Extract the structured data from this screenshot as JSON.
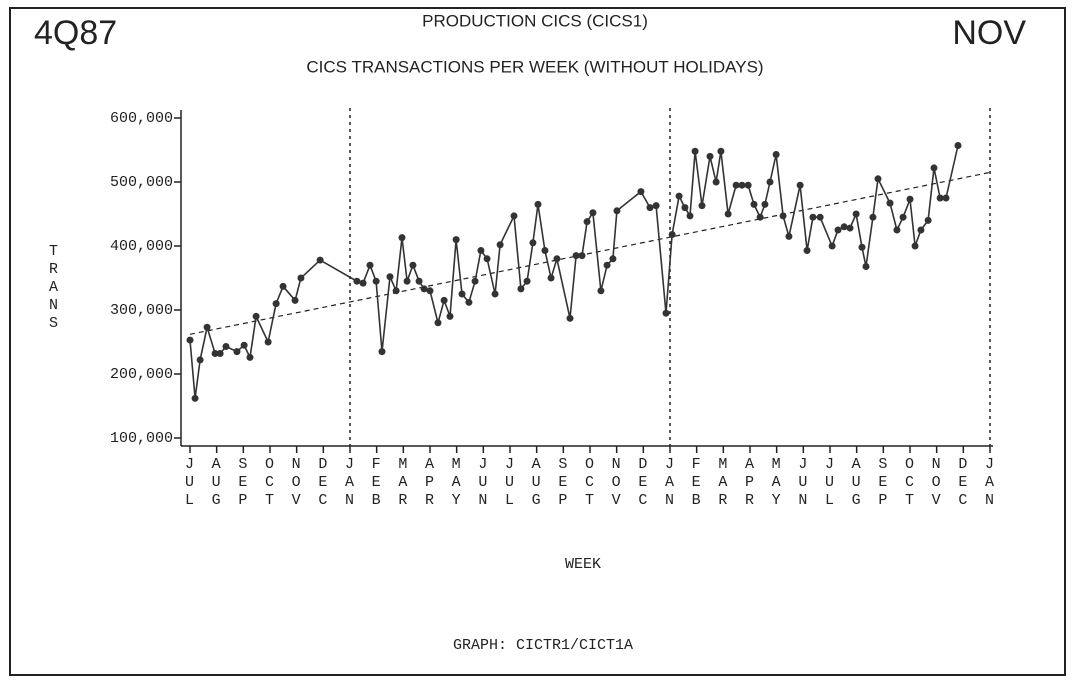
{
  "chart_data": {
    "type": "line",
    "corner_left": "4Q87",
    "corner_right": "NOV",
    "title": "PRODUCTION CICS (CICS1)",
    "subtitle": "CICS TRANSACTIONS PER WEEK (WITHOUT HOLIDAYS)",
    "ylabel": "TRANS",
    "xlabel": "WEEK",
    "footer": "GRAPH: CICTR1/CICT1A",
    "ylim": [
      100000,
      600000
    ],
    "yticks": [
      {
        "value": 100000,
        "label": "100,000"
      },
      {
        "value": 200000,
        "label": "200,000"
      },
      {
        "value": 300000,
        "label": "300,000"
      },
      {
        "value": 400000,
        "label": "400,000"
      },
      {
        "value": 500000,
        "label": "500,000"
      },
      {
        "value": 600000,
        "label": "600,000"
      }
    ],
    "xlim": [
      0,
      30
    ],
    "xticks": [
      {
        "value": 0,
        "label": "JUL"
      },
      {
        "value": 1,
        "label": "AUG"
      },
      {
        "value": 2,
        "label": "SEP"
      },
      {
        "value": 3,
        "label": "OCT"
      },
      {
        "value": 4,
        "label": "NOV"
      },
      {
        "value": 5,
        "label": "DEC"
      },
      {
        "value": 6,
        "label": "JAN"
      },
      {
        "value": 7,
        "label": "FEB"
      },
      {
        "value": 8,
        "label": "MAR"
      },
      {
        "value": 9,
        "label": "APR"
      },
      {
        "value": 10,
        "label": "MAY"
      },
      {
        "value": 11,
        "label": "JUN"
      },
      {
        "value": 12,
        "label": "JUL"
      },
      {
        "value": 13,
        "label": "AUG"
      },
      {
        "value": 14,
        "label": "SEP"
      },
      {
        "value": 15,
        "label": "OCT"
      },
      {
        "value": 16,
        "label": "NOV"
      },
      {
        "value": 17,
        "label": "DEC"
      },
      {
        "value": 18,
        "label": "JAN"
      },
      {
        "value": 19,
        "label": "FEB"
      },
      {
        "value": 20,
        "label": "MAR"
      },
      {
        "value": 21,
        "label": "APR"
      },
      {
        "value": 22,
        "label": "MAY"
      },
      {
        "value": 23,
        "label": "JUN"
      },
      {
        "value": 24,
        "label": "JUL"
      },
      {
        "value": 25,
        "label": "AUG"
      },
      {
        "value": 26,
        "label": "SEP"
      },
      {
        "value": 27,
        "label": "OCT"
      },
      {
        "value": 28,
        "label": "NOV"
      },
      {
        "value": 29,
        "label": "DEC"
      },
      {
        "value": 30,
        "label": "JAN"
      }
    ],
    "year_dividers": [
      6,
      18,
      30
    ],
    "color": "#333333",
    "x": [
      0,
      0.19,
      0.38,
      0.64,
      0.94,
      1.13,
      1.35,
      1.76,
      2.03,
      2.25,
      2.48,
      2.93,
      3.23,
      3.49,
      3.94,
      4.16,
      4.88,
      6.26,
      6.49,
      6.75,
      6.98,
      7.2,
      7.5,
      7.73,
      7.95,
      8.14,
      8.36,
      8.59,
      8.78,
      9.0,
      9.3,
      9.53,
      9.75,
      9.98,
      10.2,
      10.46,
      10.69,
      10.91,
      11.14,
      11.44,
      11.63,
      12.15,
      12.41,
      12.64,
      12.86,
      13.05,
      13.31,
      13.54,
      13.76,
      14.25,
      14.48,
      14.7,
      14.89,
      15.11,
      15.41,
      15.64,
      15.86,
      16.01,
      16.91,
      17.25,
      17.48,
      17.85,
      18.08,
      18.34,
      18.56,
      18.75,
      18.94,
      19.2,
      19.5,
      19.73,
      19.91,
      20.18,
      20.48,
      20.7,
      20.93,
      21.15,
      21.38,
      21.56,
      21.75,
      21.98,
      22.24,
      22.46,
      22.88,
      23.14,
      23.36,
      23.63,
      24.08,
      24.3,
      24.53,
      24.75,
      24.98,
      25.2,
      25.35,
      25.61,
      25.8,
      26.25,
      26.51,
      26.74,
      27.0,
      27.19,
      27.41,
      27.68,
      27.9,
      28.13,
      28.35,
      28.8
    ],
    "values": [
      253000,
      162000,
      222000,
      273000,
      232000,
      232000,
      243000,
      235000,
      245000,
      226000,
      290000,
      250000,
      310000,
      337000,
      315000,
      350000,
      378000,
      345000,
      342000,
      370000,
      345000,
      235000,
      352000,
      330000,
      413000,
      345000,
      370000,
      345000,
      333000,
      330000,
      280000,
      315000,
      290000,
      410000,
      325000,
      312000,
      345000,
      393000,
      380000,
      325000,
      402000,
      447000,
      333000,
      345000,
      405000,
      465000,
      393000,
      350000,
      380000,
      287000,
      385000,
      385000,
      438000,
      452000,
      330000,
      370000,
      380000,
      455000,
      485000,
      460000,
      463000,
      295000,
      418000,
      478000,
      460000,
      447000,
      548000,
      463000,
      540000,
      500000,
      548000,
      450000,
      495000,
      495000,
      495000,
      465000,
      445000,
      465000,
      500000,
      543000,
      447000,
      415000,
      495000,
      393000,
      445000,
      445000,
      400000,
      425000,
      430000,
      428000,
      450000,
      398000,
      368000,
      445000,
      505000,
      467000,
      425000,
      445000,
      473000,
      400000,
      425000,
      440000,
      522000,
      475000,
      475000,
      557000
    ],
    "trend_line": {
      "x": [
        0,
        30
      ],
      "values": [
        262000,
        515000
      ]
    }
  }
}
